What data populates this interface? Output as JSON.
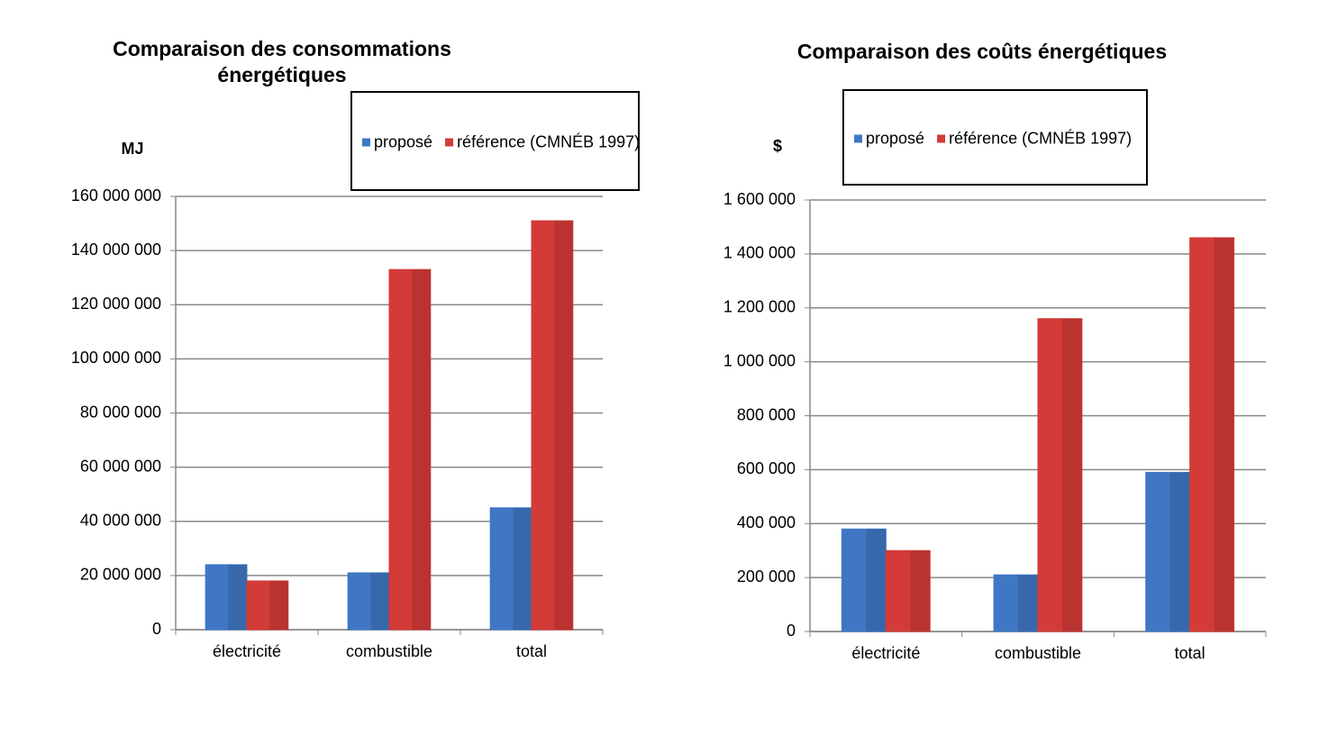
{
  "chart_data": [
    {
      "type": "bar",
      "title": "Comparaison des consommations énergétiques",
      "y_label": "MJ",
      "categories": [
        "électricité",
        "combustible",
        "total"
      ],
      "series": [
        {
          "name": "proposé",
          "color": "#3f77c4",
          "values": [
            24000000,
            21000000,
            45000000
          ]
        },
        {
          "name": "référence (CMNÉB 1997)",
          "color": "#d33b38",
          "values": [
            18000000,
            133000000,
            151000000
          ]
        }
      ],
      "ylim": [
        0,
        160000000
      ],
      "yticks": [
        0,
        {
          "value": 20000000,
          "label": "20 000 000"
        },
        {
          "value": 40000000,
          "label": "40 000 000"
        },
        {
          "value": 60000000,
          "label": "60 000 000"
        },
        {
          "value": 80000000,
          "label": "80 000 000"
        },
        {
          "value": 100000000,
          "label": "100 000 000"
        },
        {
          "value": 120000000,
          "label": "120 000 000"
        },
        {
          "value": 140000000,
          "label": "140 000 000"
        },
        {
          "value": 160000000,
          "label": "160 000 000"
        }
      ],
      "grid": true
    },
    {
      "type": "bar",
      "title": "Comparaison des coûts énergétiques",
      "y_label": "$",
      "categories": [
        "électricité",
        "combustible",
        "total"
      ],
      "series": [
        {
          "name": "proposé",
          "color": "#3f77c4",
          "values": [
            380000,
            210000,
            590000
          ]
        },
        {
          "name": "référence (CMNÉB 1997)",
          "color": "#d33b38",
          "values": [
            300000,
            1160000,
            1460000
          ]
        }
      ],
      "ylim": [
        0,
        1600000
      ],
      "yticks": [
        0,
        {
          "value": 200000,
          "label": "200 000"
        },
        {
          "value": 400000,
          "label": "400 000"
        },
        {
          "value": 600000,
          "label": "600 000"
        },
        {
          "value": 800000,
          "label": "800 000"
        },
        {
          "value": 1000000,
          "label": "1 000 000"
        },
        {
          "value": 1200000,
          "label": "1 200 000"
        },
        {
          "value": 1400000,
          "label": "1 400 000"
        },
        {
          "value": 1600000,
          "label": "1 600 000"
        }
      ],
      "grid": true
    }
  ]
}
